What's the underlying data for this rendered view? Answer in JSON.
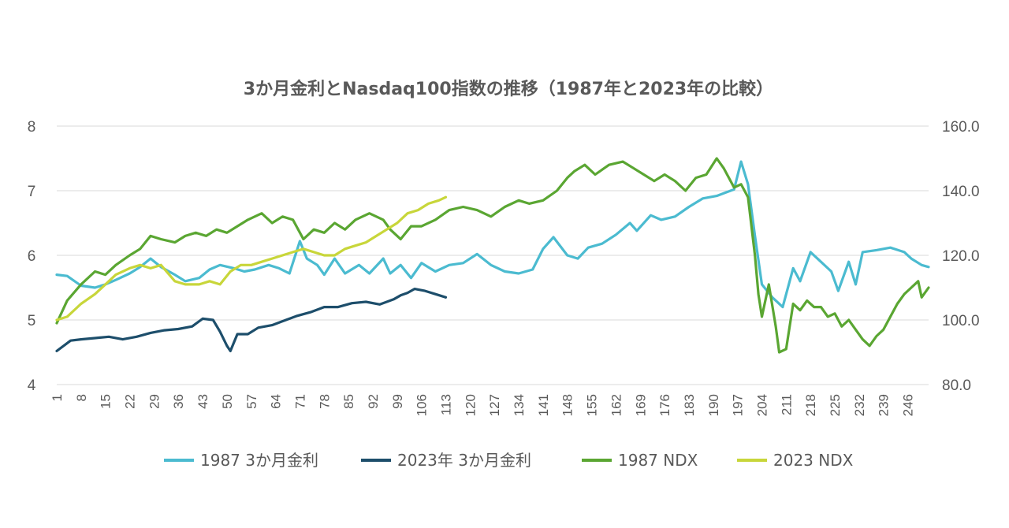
{
  "chart_data": {
    "type": "line",
    "title": "3か月金利とNasdaq100指数の推移（1987年と2023年の比較）",
    "x_ticks": [
      1,
      8,
      15,
      22,
      29,
      36,
      43,
      50,
      57,
      64,
      71,
      78,
      85,
      92,
      99,
      106,
      113,
      120,
      127,
      134,
      141,
      148,
      155,
      162,
      169,
      176,
      183,
      190,
      197,
      204,
      211,
      218,
      225,
      232,
      239,
      246
    ],
    "x_range": [
      1,
      252
    ],
    "y_left": {
      "range": [
        4,
        8
      ],
      "ticks": [
        "4",
        "5",
        "6",
        "7",
        "8"
      ]
    },
    "y_right": {
      "range": [
        80,
        160
      ],
      "ticks": [
        "80.0",
        "100.0",
        "120.0",
        "140.0",
        "160.0"
      ]
    },
    "grid": true,
    "legend_position": "bottom",
    "series": [
      {
        "name": "1987 3か月金利",
        "axis": "left",
        "color": "#4bbbd0",
        "points": [
          [
            1,
            5.7
          ],
          [
            4,
            5.68
          ],
          [
            8,
            5.53
          ],
          [
            12,
            5.5
          ],
          [
            15,
            5.55
          ],
          [
            18,
            5.62
          ],
          [
            22,
            5.72
          ],
          [
            25,
            5.82
          ],
          [
            28,
            5.95
          ],
          [
            31,
            5.82
          ],
          [
            35,
            5.7
          ],
          [
            38,
            5.6
          ],
          [
            42,
            5.65
          ],
          [
            45,
            5.78
          ],
          [
            48,
            5.85
          ],
          [
            52,
            5.8
          ],
          [
            55,
            5.75
          ],
          [
            58,
            5.78
          ],
          [
            62,
            5.85
          ],
          [
            65,
            5.8
          ],
          [
            68,
            5.72
          ],
          [
            71,
            6.22
          ],
          [
            73,
            5.95
          ],
          [
            76,
            5.85
          ],
          [
            78,
            5.7
          ],
          [
            81,
            5.95
          ],
          [
            84,
            5.72
          ],
          [
            88,
            5.85
          ],
          [
            91,
            5.72
          ],
          [
            95,
            5.95
          ],
          [
            97,
            5.72
          ],
          [
            100,
            5.85
          ],
          [
            103,
            5.65
          ],
          [
            106,
            5.88
          ],
          [
            110,
            5.75
          ],
          [
            114,
            5.85
          ],
          [
            118,
            5.88
          ],
          [
            122,
            6.02
          ],
          [
            126,
            5.85
          ],
          [
            130,
            5.75
          ],
          [
            134,
            5.72
          ],
          [
            138,
            5.78
          ],
          [
            141,
            6.1
          ],
          [
            144,
            6.28
          ],
          [
            148,
            6.0
          ],
          [
            151,
            5.95
          ],
          [
            154,
            6.12
          ],
          [
            158,
            6.18
          ],
          [
            162,
            6.32
          ],
          [
            166,
            6.5
          ],
          [
            168,
            6.38
          ],
          [
            172,
            6.62
          ],
          [
            175,
            6.55
          ],
          [
            179,
            6.6
          ],
          [
            183,
            6.75
          ],
          [
            187,
            6.88
          ],
          [
            191,
            6.92
          ],
          [
            194,
            6.98
          ],
          [
            196,
            7.02
          ],
          [
            198,
            7.45
          ],
          [
            200,
            7.1
          ],
          [
            202,
            6.3
          ],
          [
            204,
            5.55
          ],
          [
            207,
            5.35
          ],
          [
            210,
            5.2
          ],
          [
            213,
            5.8
          ],
          [
            215,
            5.6
          ],
          [
            218,
            6.05
          ],
          [
            221,
            5.9
          ],
          [
            224,
            5.75
          ],
          [
            226,
            5.45
          ],
          [
            229,
            5.9
          ],
          [
            231,
            5.55
          ],
          [
            233,
            6.05
          ],
          [
            237,
            6.08
          ],
          [
            241,
            6.12
          ],
          [
            245,
            6.05
          ],
          [
            247,
            5.95
          ],
          [
            250,
            5.85
          ],
          [
            252,
            5.82
          ]
        ]
      },
      {
        "name": "2023年 3か月金利",
        "axis": "left",
        "color": "#1d4e6b",
        "points": [
          [
            1,
            4.52
          ],
          [
            5,
            4.68
          ],
          [
            8,
            4.7
          ],
          [
            12,
            4.72
          ],
          [
            16,
            4.74
          ],
          [
            20,
            4.7
          ],
          [
            24,
            4.74
          ],
          [
            28,
            4.8
          ],
          [
            32,
            4.84
          ],
          [
            36,
            4.86
          ],
          [
            40,
            4.9
          ],
          [
            43,
            5.02
          ],
          [
            46,
            5.0
          ],
          [
            48,
            4.82
          ],
          [
            50,
            4.6
          ],
          [
            51,
            4.52
          ],
          [
            53,
            4.78
          ],
          [
            56,
            4.78
          ],
          [
            59,
            4.88
          ],
          [
            63,
            4.92
          ],
          [
            66,
            4.98
          ],
          [
            70,
            5.06
          ],
          [
            74,
            5.12
          ],
          [
            78,
            5.2
          ],
          [
            82,
            5.2
          ],
          [
            86,
            5.26
          ],
          [
            90,
            5.28
          ],
          [
            94,
            5.24
          ],
          [
            98,
            5.32
          ],
          [
            100,
            5.38
          ],
          [
            102,
            5.42
          ],
          [
            104,
            5.48
          ],
          [
            107,
            5.45
          ],
          [
            110,
            5.4
          ],
          [
            113,
            5.35
          ]
        ]
      },
      {
        "name": "1987 NDX",
        "axis": "right",
        "color": "#5aa632",
        "points": [
          [
            1,
            99.0
          ],
          [
            4,
            106.0
          ],
          [
            8,
            111.0
          ],
          [
            12,
            115.0
          ],
          [
            15,
            114.0
          ],
          [
            18,
            117.0
          ],
          [
            22,
            120.0
          ],
          [
            25,
            122.0
          ],
          [
            28,
            126.0
          ],
          [
            31,
            125.0
          ],
          [
            35,
            124.0
          ],
          [
            38,
            126.0
          ],
          [
            41,
            127.0
          ],
          [
            44,
            126.0
          ],
          [
            47,
            128.0
          ],
          [
            50,
            127.0
          ],
          [
            53,
            129.0
          ],
          [
            56,
            131.0
          ],
          [
            60,
            133.0
          ],
          [
            63,
            130.0
          ],
          [
            66,
            132.0
          ],
          [
            69,
            131.0
          ],
          [
            72,
            125.0
          ],
          [
            75,
            128.0
          ],
          [
            78,
            127.0
          ],
          [
            81,
            130.0
          ],
          [
            84,
            128.0
          ],
          [
            87,
            131.0
          ],
          [
            91,
            133.0
          ],
          [
            95,
            131.0
          ],
          [
            97,
            128.0
          ],
          [
            100,
            125.0
          ],
          [
            103,
            129.0
          ],
          [
            106,
            129.0
          ],
          [
            110,
            131.0
          ],
          [
            114,
            134.0
          ],
          [
            118,
            135.0
          ],
          [
            122,
            134.0
          ],
          [
            126,
            132.0
          ],
          [
            130,
            135.0
          ],
          [
            134,
            137.0
          ],
          [
            137,
            136.0
          ],
          [
            141,
            137.0
          ],
          [
            145,
            140.0
          ],
          [
            148,
            144.0
          ],
          [
            150,
            146.0
          ],
          [
            153,
            148.0
          ],
          [
            156,
            145.0
          ],
          [
            160,
            148.0
          ],
          [
            164,
            149.0
          ],
          [
            167,
            147.0
          ],
          [
            170,
            145.0
          ],
          [
            173,
            143.0
          ],
          [
            176,
            145.0
          ],
          [
            179,
            143.0
          ],
          [
            182,
            140.0
          ],
          [
            185,
            144.0
          ],
          [
            188,
            145.0
          ],
          [
            191,
            150.0
          ],
          [
            193,
            147.0
          ],
          [
            196,
            141.0
          ],
          [
            198,
            142.0
          ],
          [
            200,
            138.0
          ],
          [
            202,
            120.0
          ],
          [
            203,
            108.0
          ],
          [
            204,
            101.0
          ],
          [
            206,
            111.0
          ],
          [
            208,
            98.0
          ],
          [
            209,
            90.0
          ],
          [
            211,
            91.0
          ],
          [
            213,
            105.0
          ],
          [
            215,
            103.0
          ],
          [
            217,
            106.0
          ],
          [
            219,
            104.0
          ],
          [
            221,
            104.0
          ],
          [
            223,
            101.0
          ],
          [
            225,
            102.0
          ],
          [
            227,
            98.0
          ],
          [
            229,
            100.0
          ],
          [
            231,
            97.0
          ],
          [
            233,
            94.0
          ],
          [
            235,
            92.0
          ],
          [
            237,
            95.0
          ],
          [
            239,
            97.0
          ],
          [
            241,
            101.0
          ],
          [
            243,
            105.0
          ],
          [
            245,
            108.0
          ],
          [
            247,
            110.0
          ],
          [
            249,
            112.0
          ],
          [
            250,
            107.0
          ],
          [
            252,
            110.0
          ]
        ]
      },
      {
        "name": "2023 NDX",
        "axis": "right",
        "color": "#c8d63a",
        "points": [
          [
            1,
            100.0
          ],
          [
            4,
            101.0
          ],
          [
            8,
            105.0
          ],
          [
            12,
            108.0
          ],
          [
            15,
            111.0
          ],
          [
            18,
            114.0
          ],
          [
            22,
            116.0
          ],
          [
            25,
            117.0
          ],
          [
            28,
            116.0
          ],
          [
            31,
            117.0
          ],
          [
            35,
            112.0
          ],
          [
            38,
            111.0
          ],
          [
            42,
            111.0
          ],
          [
            45,
            112.0
          ],
          [
            48,
            111.0
          ],
          [
            51,
            115.0
          ],
          [
            54,
            117.0
          ],
          [
            57,
            117.0
          ],
          [
            60,
            118.0
          ],
          [
            63,
            119.0
          ],
          [
            66,
            120.0
          ],
          [
            69,
            121.0
          ],
          [
            72,
            122.0
          ],
          [
            75,
            121.0
          ],
          [
            78,
            120.0
          ],
          [
            81,
            120.0
          ],
          [
            84,
            122.0
          ],
          [
            87,
            123.0
          ],
          [
            90,
            124.0
          ],
          [
            93,
            126.0
          ],
          [
            96,
            128.0
          ],
          [
            99,
            130.0
          ],
          [
            102,
            133.0
          ],
          [
            105,
            134.0
          ],
          [
            108,
            136.0
          ],
          [
            111,
            137.0
          ],
          [
            113,
            138.0
          ]
        ]
      }
    ]
  }
}
